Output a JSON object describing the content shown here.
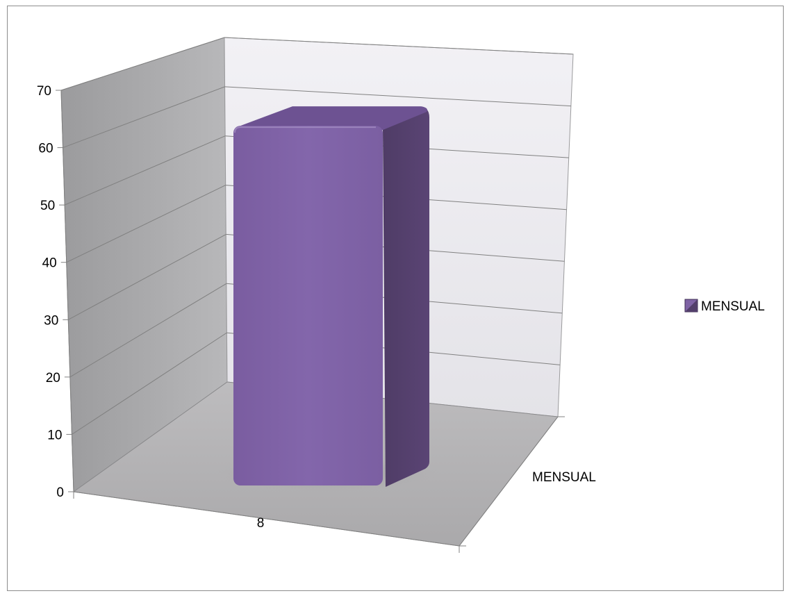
{
  "chart_data": {
    "type": "bar",
    "categories": [
      "8"
    ],
    "series": [
      {
        "name": "MENSUAL",
        "values": [
          65
        ]
      }
    ],
    "depth_labels": [
      "MENSUAL"
    ],
    "ylim": [
      0,
      70
    ],
    "yticks": [
      0,
      10,
      20,
      30,
      40,
      50,
      60,
      70
    ],
    "grid": true,
    "legend_position": "right",
    "colors": {
      "bar_front": "#7F63A5",
      "bar_side": "#533F6B",
      "bar_top": "#6D5292",
      "back_wall": "#ECEAF0",
      "side_wall": "#A2A2A4",
      "floor": "#B3B2B4",
      "gridline": "#808080"
    }
  }
}
